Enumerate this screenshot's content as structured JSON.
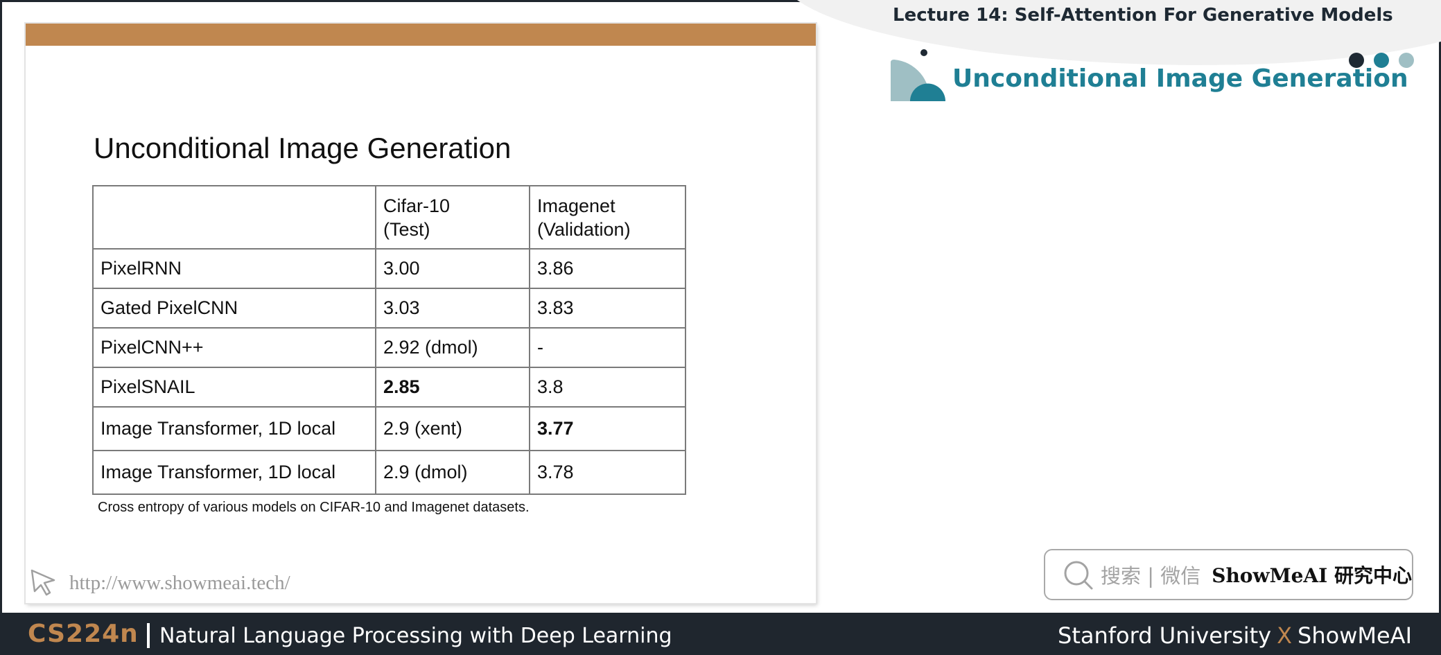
{
  "header": {
    "lecture_title": "Lecture 14:  Self-Attention For Generative Models",
    "section_title": "Unconditional Image Generation"
  },
  "slide": {
    "title": "Unconditional Image Generation",
    "table": {
      "columns": [
        "",
        [
          "Cifar-10",
          "(Test)"
        ],
        [
          "Imagenet",
          "(Validation)"
        ]
      ],
      "rows": [
        {
          "model": "PixelRNN",
          "cifar": "3.00",
          "imagenet": "3.86"
        },
        {
          "model": "Gated PixelCNN",
          "cifar": "3.03",
          "imagenet": "3.83"
        },
        {
          "model": "PixelCNN++",
          "cifar": "2.92 (dmol)",
          "imagenet": "-"
        },
        {
          "model": "PixelSNAIL",
          "cifar": "2.85",
          "imagenet": "3.8"
        },
        {
          "model": "Image Transformer, 1D local",
          "cifar": "2.9 (xent)",
          "imagenet": "3.77"
        },
        {
          "model": "Image Transformer, 1D local",
          "cifar": "2.9 (dmol)",
          "imagenet": "3.78"
        }
      ]
    },
    "caption": "Cross entropy of various models on CIFAR-10 and Imagenet datasets.",
    "url": "http://www.showmeai.tech/"
  },
  "search": {
    "hint": "搜索 | 微信",
    "brand": "ShowMeAI 研究中心"
  },
  "footer": {
    "course": "CS224n",
    "subtitle": "Natural Language Processing with Deep Learning",
    "right_part1": "Stanford University",
    "right_x": "X",
    "right_part2": "ShowMeAI"
  },
  "colors": {
    "accent_orange": "#c0874f",
    "teal": "#1f7f94",
    "dark": "#1f262e"
  }
}
